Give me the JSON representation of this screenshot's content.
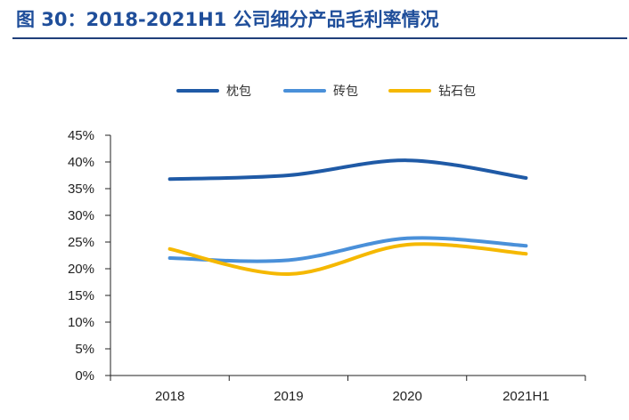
{
  "header": {
    "title": "图 30：2018-2021H1 公司细分产品毛利率情况"
  },
  "chart_data": {
    "type": "line",
    "categories": [
      "2018",
      "2019",
      "2020",
      "2021H1"
    ],
    "series": [
      {
        "name": "枕包",
        "values": [
          36.8,
          37.5,
          40.3,
          37.0
        ],
        "color": "#1f5aa6"
      },
      {
        "name": "砖包",
        "values": [
          22.0,
          21.6,
          25.7,
          24.3
        ],
        "color": "#4a90d9"
      },
      {
        "name": "钻石包",
        "values": [
          23.7,
          19.0,
          24.5,
          22.8
        ],
        "color": "#f5b800"
      }
    ],
    "ylim": [
      0,
      45
    ],
    "yticks": [
      "0%",
      "5%",
      "10%",
      "15%",
      "20%",
      "25%",
      "30%",
      "35%",
      "40%",
      "45%"
    ],
    "legend_position": "top-center",
    "grid": false
  }
}
